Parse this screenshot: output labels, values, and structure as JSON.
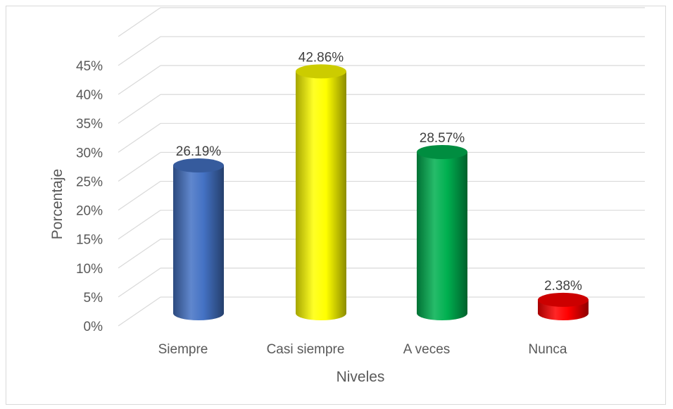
{
  "chart_data": {
    "type": "bar",
    "categories": [
      "Siempre",
      "Casi siempre",
      "A veces",
      "Nunca"
    ],
    "values": [
      26.19,
      42.86,
      28.57,
      2.38
    ],
    "data_labels": [
      "26.19%",
      "42.86%",
      "28.57%",
      "2.38%"
    ],
    "colors": [
      "#4472C4",
      "#FFFF00",
      "#00B050",
      "#FF0000"
    ],
    "xlabel": "Niveles",
    "ylabel": "Porcentaje",
    "ylim": [
      0,
      45
    ],
    "yticks": [
      "0%",
      "5%",
      "10%",
      "15%",
      "20%",
      "25%",
      "30%",
      "35%",
      "40%",
      "45%"
    ],
    "grid": true,
    "style": "3d-cylinder"
  }
}
